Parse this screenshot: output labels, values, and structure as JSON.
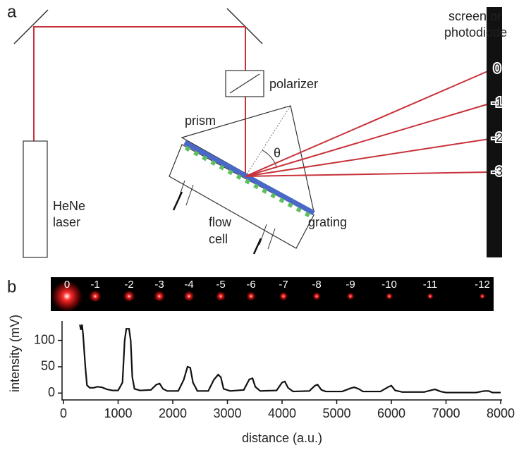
{
  "panel_a": {
    "label": "a",
    "screen": [
      "screen or",
      "photodiode"
    ],
    "orders": [
      "0",
      "-1",
      "-2",
      "-3"
    ],
    "polarizer": "polarizer",
    "prism": "prism",
    "angle": "θ",
    "laser": [
      "HeNe",
      "laser"
    ],
    "flow_cell": [
      "flow",
      "cell"
    ],
    "grating": "grating"
  },
  "panel_b": {
    "label": "b",
    "orders": [
      "0",
      "-1",
      "-2",
      "-3",
      "-4",
      "-5",
      "-6",
      "-7",
      "-8",
      "-9",
      "-10",
      "-11",
      "-12"
    ]
  },
  "chart_data": {
    "type": "line",
    "x_label": "distance (a.u.)",
    "y_label": "intensity (mV)",
    "xlim": [
      0,
      8000
    ],
    "ylim": [
      -13,
      137
    ],
    "xticks": [
      0,
      1000,
      2000,
      3000,
      4000,
      5000,
      6000,
      7000,
      8000
    ],
    "yticks": [
      0,
      50,
      100
    ],
    "color": "#111111",
    "x": [
      300,
      320,
      340,
      360,
      400,
      430,
      480,
      550,
      620,
      700,
      800,
      900,
      1000,
      1080,
      1120,
      1150,
      1200,
      1230,
      1260,
      1300,
      1400,
      1600,
      1700,
      1760,
      1820,
      1900,
      2100,
      2200,
      2270,
      2320,
      2370,
      2450,
      2650,
      2750,
      2830,
      2880,
      2930,
      3050,
      3300,
      3400,
      3460,
      3510,
      3600,
      3900,
      4000,
      4050,
      4110,
      4200,
      4500,
      4600,
      4650,
      4720,
      4800,
      5100,
      5250,
      5320,
      5400,
      5480,
      5800,
      5950,
      6000,
      6070,
      6200,
      6600,
      6750,
      6800,
      6900,
      7000,
      7550,
      7700,
      7780,
      7850,
      8000
    ],
    "values": [
      130,
      120,
      130,
      110,
      50,
      15,
      10,
      10,
      12,
      11,
      7,
      5,
      5,
      20,
      100,
      122,
      122,
      100,
      30,
      8,
      5,
      6,
      16,
      18,
      8,
      4,
      4,
      25,
      50,
      48,
      20,
      4,
      4,
      25,
      35,
      30,
      8,
      4,
      6,
      26,
      28,
      12,
      4,
      5,
      20,
      22,
      10,
      3,
      4,
      14,
      16,
      6,
      3,
      3,
      9,
      11,
      8,
      3,
      3,
      12,
      14,
      5,
      2,
      2,
      6,
      7,
      3,
      1,
      1,
      4,
      4,
      1,
      1
    ]
  }
}
